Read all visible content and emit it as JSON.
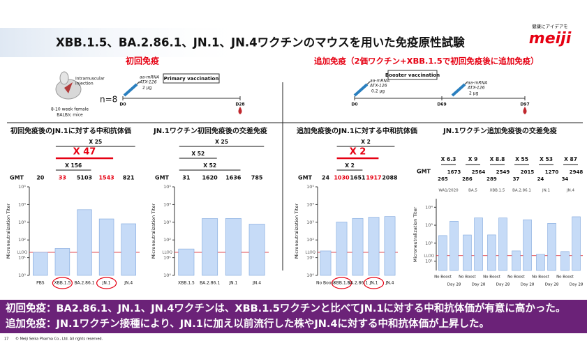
{
  "header": {
    "title": "XBB.1.5、BA.2.86.1、JN.1、JN.4ワクチンのマウスを用いた免疫原性試験",
    "logo_tagline": "健康にアイデアを",
    "logo": "meiji"
  },
  "sections": {
    "primary": "初回免疫",
    "booster": "追加免疫（2価ワクチン+XBB.1.5で初回免疫後に追加免疫）"
  },
  "schematic": {
    "injection": [
      "Intramuscular",
      "injection"
    ],
    "mice": [
      "8-10 week female",
      "BALB/c mice"
    ],
    "n": "n=8",
    "primary": {
      "label": "Primary vaccination",
      "dose": [
        "aa-mRNA",
        "ATX-126",
        "2 μg"
      ],
      "days": [
        "D0",
        "D28"
      ]
    },
    "booster": {
      "label": "Booster vaccination",
      "doses": [
        [
          "aa-mRNA",
          "ATX-126",
          "0.2 μg"
        ],
        [
          "aa-mRNA",
          "ATX-126",
          "2 μg"
        ]
      ],
      "days": [
        "D0",
        "D69",
        "D97"
      ]
    }
  },
  "chart_data": [
    {
      "type": "bar",
      "title": "初回免疫後のJN.1に対する中和抗体価",
      "gmt_label": "GMT",
      "ylabel": "Microneutralization Titer",
      "log_scale": true,
      "categories": [
        "PBS",
        "XBB.1.5",
        "BA.2.86.1",
        "JN.1",
        "JN.4"
      ],
      "values": [
        20,
        33,
        5103,
        1543,
        821
      ],
      "color": "#c6dbf7",
      "highlighted": [
        false,
        true,
        false,
        true,
        false
      ],
      "highlight_color": "#e60012",
      "ylim": [
        1,
        100000
      ],
      "yticks": [
        {
          "value": 1,
          "label": "10⁰"
        },
        {
          "value": 10,
          "label": "10¹"
        },
        {
          "value": 100,
          "label": "10²"
        },
        {
          "value": 1000,
          "label": "10³"
        },
        {
          "value": 10000,
          "label": "10⁴"
        },
        {
          "value": 100000,
          "label": "10⁵"
        }
      ],
      "lloq": {
        "label": "LLOQ",
        "value": 20
      },
      "comparisons": [
        {
          "label": "X 25",
          "from": 1,
          "to": 4
        },
        {
          "label": "X 47",
          "from": 1,
          "to": 3,
          "emphasis": true
        },
        {
          "label": "X 156",
          "from": 1,
          "to": 2
        }
      ]
    },
    {
      "type": "bar",
      "title": "JN.1ワクチン初回免疫後の交差免疫",
      "gmt_label": "GMT",
      "ylabel": "Microneutralization Titer",
      "log_scale": true,
      "categories": [
        "XBB.1.5",
        "BA.2.86.1",
        "JN.1",
        "JN.4"
      ],
      "values": [
        31,
        1620,
        1636,
        785
      ],
      "color": "#c6dbf7",
      "ylim": [
        1,
        100000
      ],
      "yticks": [
        {
          "value": 1,
          "label": "10⁰"
        },
        {
          "value": 10,
          "label": "10¹"
        },
        {
          "value": 100,
          "label": "10²"
        },
        {
          "value": 1000,
          "label": "10³"
        },
        {
          "value": 10000,
          "label": "10⁴"
        },
        {
          "value": 100000,
          "label": "10⁵"
        }
      ],
      "lloq": {
        "label": "LLOQ",
        "value": 20
      },
      "comparisons": [
        {
          "label": "X 25",
          "from": 0,
          "to": 3
        },
        {
          "label": "X 52",
          "from": 0,
          "to": 1
        },
        {
          "label": "X 52",
          "from": 0,
          "to": 2
        }
      ]
    },
    {
      "type": "bar",
      "title": "追加免疫後のJN.1に対する中和抗体価",
      "gmt_label": "GMT",
      "ylabel": "Microneutralization Titer",
      "log_scale": true,
      "categories": [
        "No Boost",
        "XBB.1.5",
        "BA.2.86.1",
        "JN.1",
        "JN.4"
      ],
      "values": [
        24,
        1030,
        1651,
        1917,
        2088
      ],
      "color": "#c6dbf7",
      "highlighted": [
        false,
        true,
        false,
        true,
        false
      ],
      "highlight_color": "#e60012",
      "ylim": [
        1,
        100000
      ],
      "yticks": [
        {
          "value": 1,
          "label": "10⁰"
        },
        {
          "value": 10,
          "label": "10¹"
        },
        {
          "value": 100,
          "label": "10²"
        },
        {
          "value": 1000,
          "label": "10³"
        },
        {
          "value": 10000,
          "label": "10⁴"
        },
        {
          "value": 100000,
          "label": "10⁵"
        }
      ],
      "lloq": {
        "label": "LLOQ",
        "value": 20
      },
      "comparisons": [
        {
          "label": "X 2",
          "from": 1,
          "to": 4
        },
        {
          "label": "X 2",
          "from": 1,
          "to": 3,
          "emphasis": true
        },
        {
          "label": "X 2",
          "from": 1,
          "to": 2
        }
      ]
    },
    {
      "type": "grouped_bar",
      "title": "JN.1ワクチン追加免疫後の交差免疫",
      "gmt_label": "GMT",
      "ylabel": "Microneutralization Titer",
      "log_scale": true,
      "categories": [
        "WA1/2020",
        "BA.5",
        "XBB.1.5",
        "BA.2.86.1",
        "JN.1",
        "JN.4"
      ],
      "series": [
        {
          "name": "No Boost",
          "color": "#c6dbf7",
          "values": [
            265,
            286,
            289,
            37,
            24,
            34
          ]
        },
        {
          "name": "Day 28",
          "color": "#c6dbf7",
          "values": [
            1673,
            2564,
            2549,
            2015,
            1270,
            2948
          ]
        }
      ],
      "folds": [
        "X 6.3",
        "X 9",
        "X 8.8",
        "X 55",
        "X 53",
        "X 87"
      ],
      "ylim": [
        3,
        30000
      ],
      "yticks": [
        {
          "value": 10,
          "label": "10¹"
        },
        {
          "value": 100,
          "label": "10²"
        },
        {
          "value": 1000,
          "label": "10³"
        },
        {
          "value": 10000,
          "label": "10⁴"
        }
      ],
      "lloq": {
        "label": "LLOQ",
        "value": 20
      }
    }
  ],
  "summary": [
    "初回免疫：BA2.86.1、JN.1、JN.4ワクチンは、XBB.1.5ワクチンと比べてJN.1に対する中和抗体価が有意に高かった。",
    "追加免疫：JN.1ワクチン接種により、JN.1に加え以前流行した株やJN.4に対する中和抗体価が上昇した。"
  ],
  "footer": {
    "page": "17",
    "copyright": "© Meiji Seika Pharma Co., Ltd. All rights reserved."
  }
}
